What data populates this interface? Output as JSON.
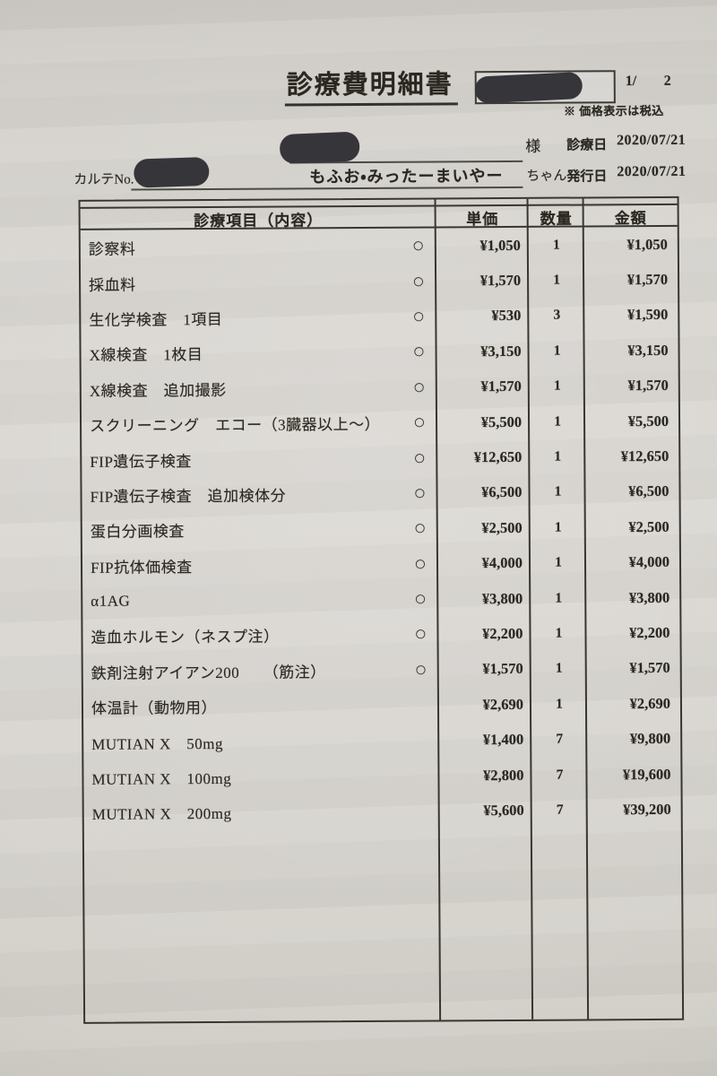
{
  "header": {
    "title": "診療費明細書",
    "page_current": "1/",
    "page_total": "2",
    "tax_note": "※ 価格表示は税込",
    "owner_suffix": "様",
    "visit_date_label": "診療日",
    "visit_date": "2020/07/21",
    "karte_label": "カルテNo.",
    "pet_name": "もふお・みったーまいやー",
    "pet_suffix": "ちゃん",
    "issue_date_label": "発行日",
    "issue_date": "2020/07/21"
  },
  "table": {
    "headers": {
      "item": "診療項目（内容）",
      "unit_price": "単価",
      "quantity": "数量",
      "amount": "金額"
    },
    "rows": [
      {
        "item": "診察料",
        "circle": "○",
        "unit_price": "¥1,050",
        "quantity": "1",
        "amount": "¥1,050"
      },
      {
        "item": "採血料",
        "circle": "○",
        "unit_price": "¥1,570",
        "quantity": "1",
        "amount": "¥1,570"
      },
      {
        "item": "生化学検査　1項目",
        "circle": "○",
        "unit_price": "¥530",
        "quantity": "3",
        "amount": "¥1,590"
      },
      {
        "item": "X線検査　1枚目",
        "circle": "○",
        "unit_price": "¥3,150",
        "quantity": "1",
        "amount": "¥3,150"
      },
      {
        "item": "X線検査　追加撮影",
        "circle": "○",
        "unit_price": "¥1,570",
        "quantity": "1",
        "amount": "¥1,570"
      },
      {
        "item": "スクリーニング　エコー（3臓器以上～）",
        "circle": "○",
        "unit_price": "¥5,500",
        "quantity": "1",
        "amount": "¥5,500"
      },
      {
        "item": "FIP遺伝子検査",
        "circle": "○",
        "unit_price": "¥12,650",
        "quantity": "1",
        "amount": "¥12,650"
      },
      {
        "item": "FIP遺伝子検査　追加検体分",
        "circle": "○",
        "unit_price": "¥6,500",
        "quantity": "1",
        "amount": "¥6,500"
      },
      {
        "item": "蛋白分画検査",
        "circle": "○",
        "unit_price": "¥2,500",
        "quantity": "1",
        "amount": "¥2,500"
      },
      {
        "item": "FIP抗体価検査",
        "circle": "○",
        "unit_price": "¥4,000",
        "quantity": "1",
        "amount": "¥4,000"
      },
      {
        "item": "α1AG",
        "circle": "○",
        "unit_price": "¥3,800",
        "quantity": "1",
        "amount": "¥3,800"
      },
      {
        "item": "造血ホルモン（ネスプ注）",
        "circle": "○",
        "unit_price": "¥2,200",
        "quantity": "1",
        "amount": "¥2,200"
      },
      {
        "item": "鉄剤注射アイアン200　　（筋注）",
        "circle": "○",
        "unit_price": "¥1,570",
        "quantity": "1",
        "amount": "¥1,570"
      },
      {
        "item": "体温計（動物用）",
        "circle": "",
        "unit_price": "¥2,690",
        "quantity": "1",
        "amount": "¥2,690"
      },
      {
        "item": "MUTIAN X　50mg",
        "circle": "",
        "unit_price": "¥1,400",
        "quantity": "7",
        "amount": "¥9,800"
      },
      {
        "item": "MUTIAN X　100mg",
        "circle": "",
        "unit_price": "¥2,800",
        "quantity": "7",
        "amount": "¥19,600"
      },
      {
        "item": "MUTIAN X　200mg",
        "circle": "",
        "unit_price": "¥5,600",
        "quantity": "7",
        "amount": "¥39,200"
      }
    ]
  }
}
